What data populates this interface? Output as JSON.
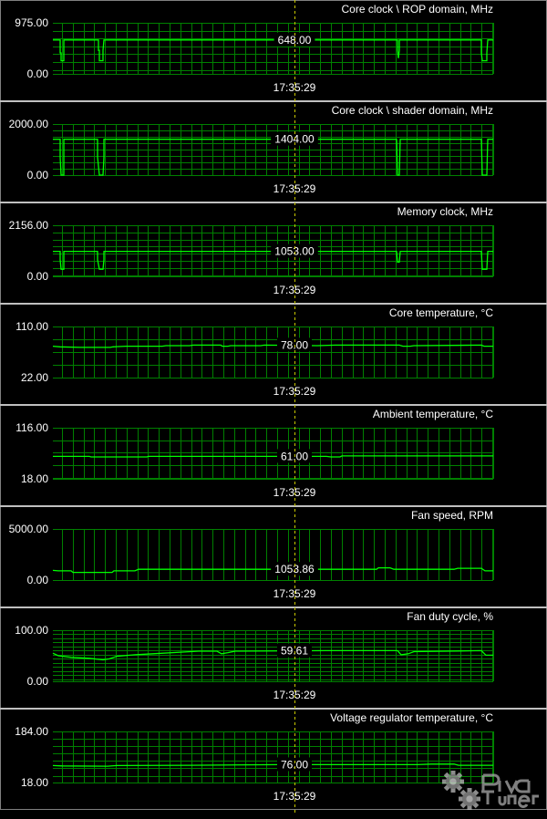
{
  "colors": {
    "grid": "#008000",
    "trace": "#00ff00",
    "text": "#ffffff",
    "cursor": "#c8c800",
    "separator": "#c0c0c0"
  },
  "cursor_time": "17:35:29",
  "watermark": "RivaTuner",
  "panels": [
    {
      "title": "Core clock \\ ROP domain, MHz",
      "max_label": "975.00",
      "min_label": "0.00",
      "min": 0,
      "max": 975,
      "grid_step": 150,
      "current_label": "648.00",
      "current": 648,
      "trace": [
        [
          0,
          648
        ],
        [
          8,
          648
        ],
        [
          8,
          400
        ],
        [
          9,
          400
        ],
        [
          9,
          250
        ],
        [
          12,
          250
        ],
        [
          12,
          648
        ],
        [
          50,
          648
        ],
        [
          50,
          450
        ],
        [
          51,
          450
        ],
        [
          51,
          250
        ],
        [
          55,
          250
        ],
        [
          55,
          450
        ],
        [
          56,
          648
        ],
        [
          378,
          648
        ],
        [
          378,
          450
        ],
        [
          379,
          300
        ],
        [
          380,
          450
        ],
        [
          380,
          648
        ],
        [
          470,
          648
        ],
        [
          470,
          400
        ],
        [
          471,
          250
        ],
        [
          476,
          250
        ],
        [
          476,
          400
        ],
        [
          477,
          648
        ],
        [
          483,
          648
        ]
      ]
    },
    {
      "title": "Core clock \\ shader domain, MHz",
      "max_label": "2000.00",
      "min_label": "0.00",
      "min": 0,
      "max": 2000,
      "grid_step": 250,
      "current_label": "1404.00",
      "current": 1404,
      "trace": [
        [
          0,
          1404
        ],
        [
          8,
          1404
        ],
        [
          8,
          700
        ],
        [
          9,
          0
        ],
        [
          12,
          0
        ],
        [
          12,
          1404
        ],
        [
          49,
          1404
        ],
        [
          49,
          700
        ],
        [
          51,
          0
        ],
        [
          55,
          0
        ],
        [
          56,
          700
        ],
        [
          56,
          1404
        ],
        [
          377,
          1404
        ],
        [
          378,
          0
        ],
        [
          380,
          0
        ],
        [
          381,
          1404
        ],
        [
          470,
          1404
        ],
        [
          471,
          0
        ],
        [
          476,
          0
        ],
        [
          477,
          1404
        ],
        [
          483,
          1404
        ]
      ]
    },
    {
      "title": "Memory clock, MHz",
      "max_label": "2156.00",
      "min_label": "0.00",
      "min": 0,
      "max": 2156,
      "grid_step": 300,
      "current_label": "1053.00",
      "current": 1053,
      "trace": [
        [
          0,
          1053
        ],
        [
          8,
          1053
        ],
        [
          8,
          700
        ],
        [
          9,
          300
        ],
        [
          12,
          300
        ],
        [
          12,
          1053
        ],
        [
          49,
          1053
        ],
        [
          49,
          700
        ],
        [
          51,
          300
        ],
        [
          55,
          300
        ],
        [
          56,
          700
        ],
        [
          56,
          1053
        ],
        [
          377,
          1053
        ],
        [
          378,
          600
        ],
        [
          380,
          600
        ],
        [
          381,
          1053
        ],
        [
          470,
          1053
        ],
        [
          471,
          300
        ],
        [
          476,
          300
        ],
        [
          477,
          1053
        ],
        [
          483,
          1053
        ]
      ]
    },
    {
      "title": "Core temperature, °C",
      "max_label": "110.00",
      "min_label": "22.00",
      "min": 22,
      "max": 110,
      "grid_step": 22,
      "current_label": "78.00",
      "current": 78,
      "trace": [
        [
          0,
          76
        ],
        [
          8,
          75
        ],
        [
          30,
          74
        ],
        [
          63,
          74
        ],
        [
          66,
          75
        ],
        [
          80,
          76
        ],
        [
          120,
          76
        ],
        [
          124,
          77
        ],
        [
          150,
          77
        ],
        [
          154,
          78
        ],
        [
          170,
          78
        ],
        [
          184,
          78
        ],
        [
          186,
          76
        ],
        [
          192,
          76
        ],
        [
          195,
          77
        ],
        [
          228,
          77
        ],
        [
          232,
          78
        ],
        [
          290,
          77
        ],
        [
          310,
          78
        ],
        [
          380,
          78
        ],
        [
          384,
          76
        ],
        [
          392,
          76
        ],
        [
          396,
          77
        ],
        [
          470,
          78
        ],
        [
          473,
          76
        ],
        [
          483,
          76
        ]
      ]
    },
    {
      "title": "Ambient temperature, °C",
      "max_label": "116.00",
      "min_label": "18.00",
      "min": 18,
      "max": 116,
      "grid_step": 24,
      "current_label": "61.00",
      "current": 61,
      "trace": [
        [
          0,
          61
        ],
        [
          40,
          61
        ],
        [
          42,
          60
        ],
        [
          103,
          60
        ],
        [
          105,
          61
        ],
        [
          290,
          61
        ],
        [
          300,
          61
        ],
        [
          305,
          60
        ],
        [
          315,
          60
        ],
        [
          317,
          62
        ],
        [
          483,
          62
        ]
      ]
    },
    {
      "title": "Fan speed, RPM",
      "max_label": "5000.00",
      "min_label": "0.00",
      "min": 0,
      "max": 5000,
      "grid_step": 5000,
      "current_label": "1053.86",
      "current": 1053.86,
      "trace": [
        [
          0,
          950
        ],
        [
          6,
          900
        ],
        [
          20,
          900
        ],
        [
          22,
          750
        ],
        [
          65,
          750
        ],
        [
          67,
          900
        ],
        [
          90,
          900
        ],
        [
          94,
          1053
        ],
        [
          355,
          1053
        ],
        [
          357,
          1200
        ],
        [
          370,
          1200
        ],
        [
          374,
          1053
        ],
        [
          440,
          1053
        ],
        [
          444,
          1150
        ],
        [
          470,
          1150
        ],
        [
          474,
          900
        ],
        [
          483,
          900
        ]
      ]
    },
    {
      "title": "Fan duty cycle, %",
      "max_label": "100.00",
      "min_label": "0.00",
      "min": 0,
      "max": 100,
      "grid_step": 8,
      "current_label": "59.61",
      "current": 59.61,
      "trace": [
        [
          0,
          55
        ],
        [
          6,
          50
        ],
        [
          20,
          47
        ],
        [
          40,
          45
        ],
        [
          55,
          42
        ],
        [
          62,
          44
        ],
        [
          70,
          49
        ],
        [
          90,
          52
        ],
        [
          110,
          54
        ],
        [
          140,
          57
        ],
        [
          160,
          59
        ],
        [
          180,
          59
        ],
        [
          185,
          54
        ],
        [
          192,
          56
        ],
        [
          200,
          59
        ],
        [
          300,
          60
        ],
        [
          360,
          60
        ],
        [
          378,
          60
        ],
        [
          382,
          52
        ],
        [
          390,
          54
        ],
        [
          396,
          58
        ],
        [
          470,
          60
        ],
        [
          475,
          51
        ],
        [
          483,
          51
        ]
      ]
    },
    {
      "title": "Voltage regulator temperature, °C",
      "max_label": "184.00",
      "min_label": "18.00",
      "min": 18,
      "max": 184,
      "grid_step": 24,
      "current_label": "76.00",
      "current": 76,
      "trace": [
        [
          0,
          73
        ],
        [
          10,
          72
        ],
        [
          60,
          71
        ],
        [
          70,
          73
        ],
        [
          150,
          74
        ],
        [
          250,
          76
        ],
        [
          350,
          76
        ],
        [
          400,
          76
        ],
        [
          415,
          78
        ],
        [
          440,
          78
        ],
        [
          445,
          74
        ],
        [
          483,
          74
        ]
      ]
    }
  ]
}
